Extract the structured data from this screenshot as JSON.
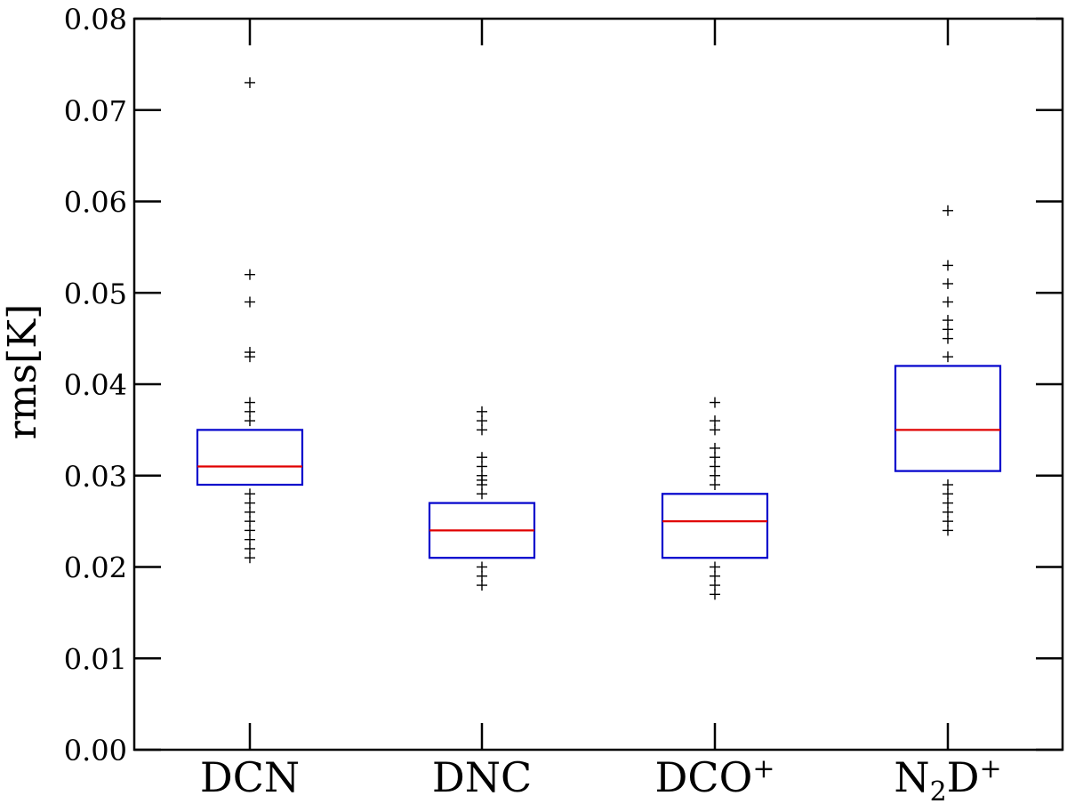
{
  "chart_data": {
    "type": "box",
    "title": "",
    "ylabel": "rms[K]",
    "ylim": [
      0.0,
      0.08
    ],
    "yticks": [
      "0.00",
      "0.01",
      "0.02",
      "0.03",
      "0.04",
      "0.05",
      "0.06",
      "0.07",
      "0.08"
    ],
    "grid": false,
    "colors": {
      "box": "#0000cc",
      "median": "#e00000",
      "outlier": "#000000",
      "axis": "#000000"
    },
    "categories": [
      {
        "parts": [
          {
            "text": "DCN"
          }
        ]
      },
      {
        "parts": [
          {
            "text": "DNC"
          }
        ]
      },
      {
        "parts": [
          {
            "text": "DCO"
          },
          {
            "text": "+",
            "style": "sup"
          }
        ]
      },
      {
        "parts": [
          {
            "text": "N"
          },
          {
            "text": "2",
            "style": "sub"
          },
          {
            "text": "D"
          },
          {
            "text": "+",
            "style": "sup"
          }
        ]
      }
    ],
    "boxes": [
      {
        "q1": 0.029,
        "median": 0.031,
        "q3": 0.035,
        "outliers": [
          0.073,
          0.052,
          0.049,
          0.0435,
          0.043,
          0.038,
          0.037,
          0.036,
          0.028,
          0.027,
          0.026,
          0.025,
          0.024,
          0.023,
          0.022,
          0.021
        ]
      },
      {
        "q1": 0.021,
        "median": 0.024,
        "q3": 0.027,
        "outliers": [
          0.037,
          0.036,
          0.035,
          0.032,
          0.031,
          0.03,
          0.0295,
          0.029,
          0.028,
          0.02,
          0.019,
          0.018
        ]
      },
      {
        "q1": 0.021,
        "median": 0.025,
        "q3": 0.028,
        "outliers": [
          0.038,
          0.036,
          0.035,
          0.033,
          0.032,
          0.031,
          0.03,
          0.029,
          0.02,
          0.019,
          0.018,
          0.017
        ]
      },
      {
        "q1": 0.0305,
        "median": 0.035,
        "q3": 0.042,
        "outliers": [
          0.059,
          0.053,
          0.051,
          0.049,
          0.047,
          0.046,
          0.045,
          0.043,
          0.029,
          0.028,
          0.027,
          0.026,
          0.025,
          0.024
        ]
      }
    ]
  }
}
